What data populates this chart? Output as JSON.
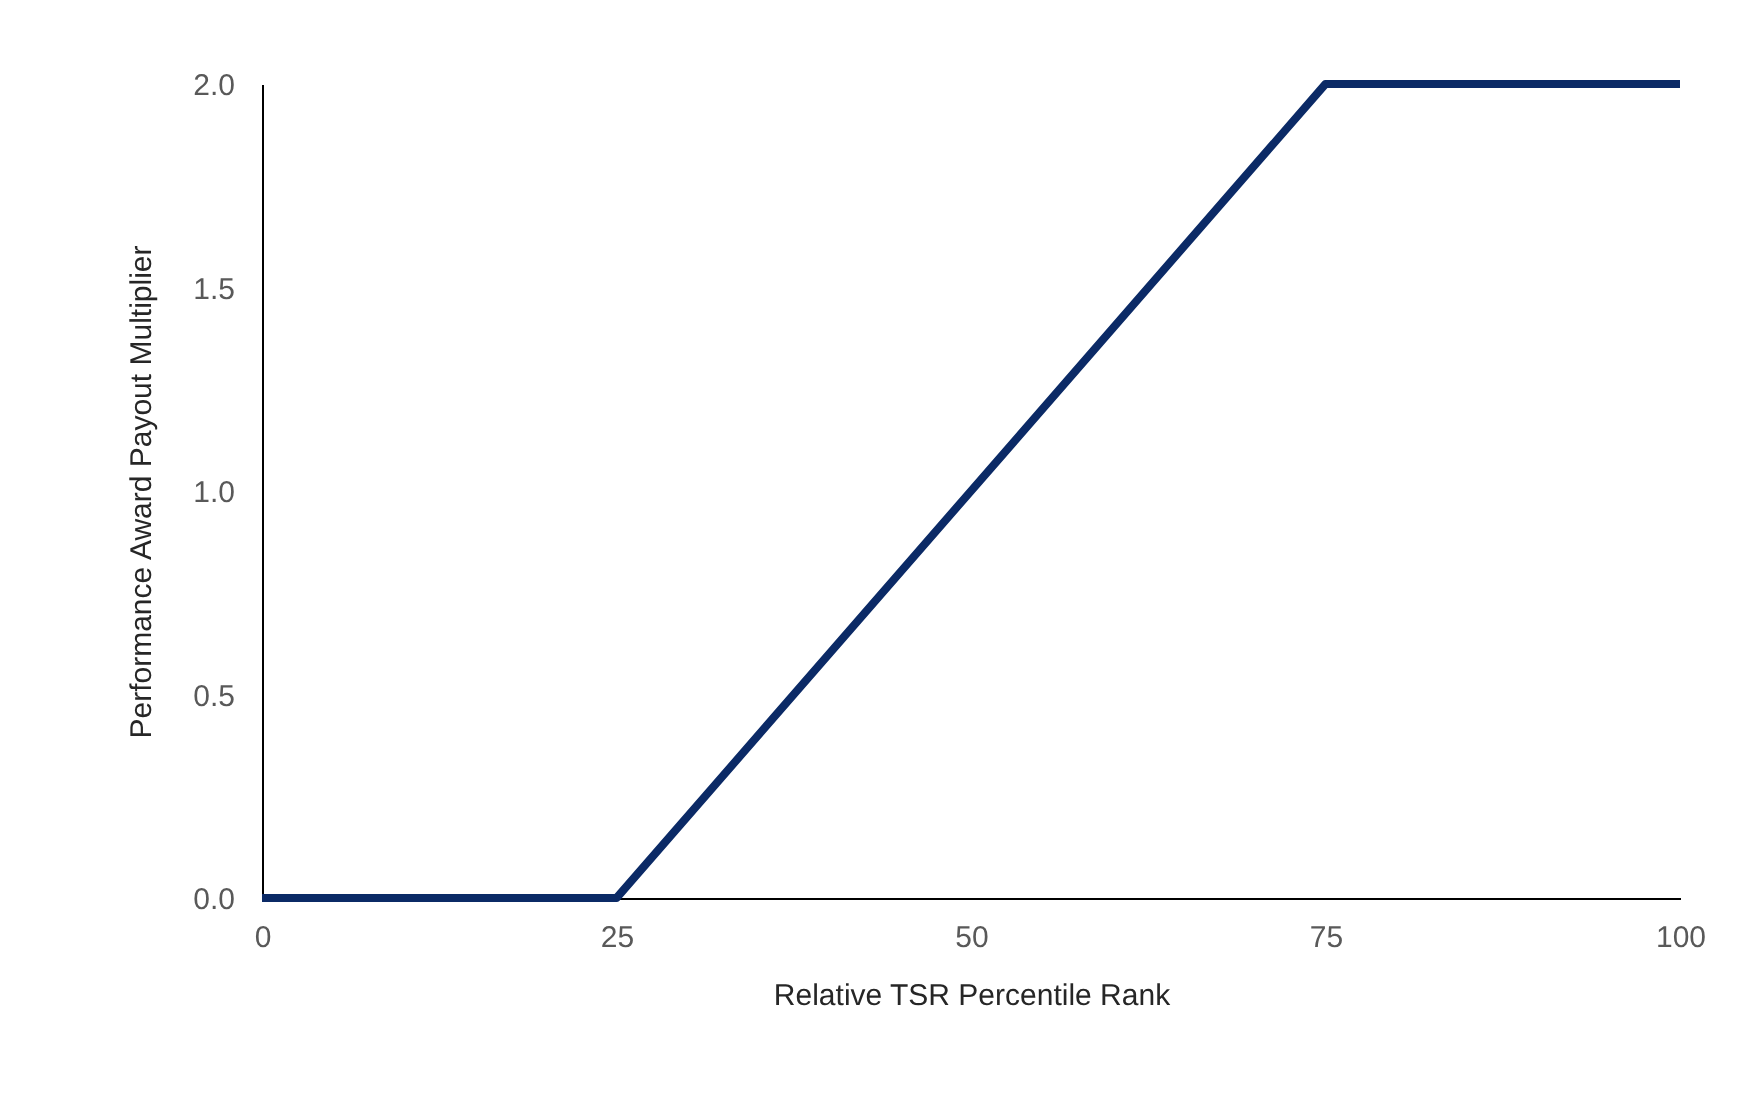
{
  "chart_data": {
    "type": "line",
    "xlabel": "Relative TSR Percentile Rank",
    "ylabel": "Performance Award Payout Multiplier",
    "x": [
      0,
      25,
      75,
      100
    ],
    "series": [
      {
        "color": "#0b2a66",
        "values": [
          0,
          0,
          2,
          2
        ]
      }
    ],
    "xlim": [
      0,
      100
    ],
    "xticks": [
      0,
      25,
      50,
      75,
      100
    ],
    "ylim": [
      0,
      2
    ],
    "yticks": [
      {
        "value": 0,
        "label": "0.0"
      },
      {
        "value": 0.5,
        "label": "0.5"
      },
      {
        "value": 1,
        "label": "1.0"
      },
      {
        "value": 1.5,
        "label": "1.5"
      },
      {
        "value": 2,
        "label": "2.0"
      }
    ],
    "grid": false,
    "marker": "none",
    "line_style": "solid"
  }
}
